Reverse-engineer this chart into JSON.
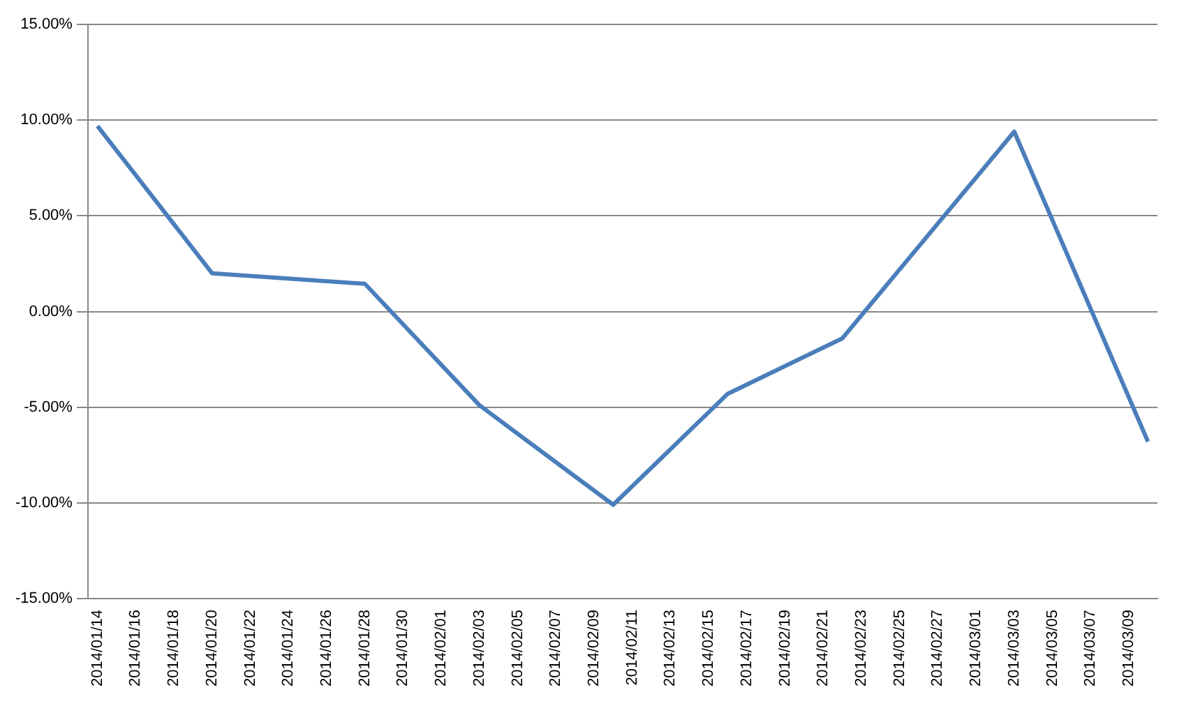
{
  "chart_data": {
    "type": "line",
    "x": [
      "2014-01-14",
      "2014-01-20",
      "2014-01-28",
      "2014-02-03",
      "2014-02-10",
      "2014-02-16",
      "2014-02-22",
      "2014-03-03",
      "2014-03-10"
    ],
    "series": [
      {
        "color": "#4a7ebb",
        "values": [
          9.7,
          2.0,
          1.45,
          -4.9,
          -10.1,
          -4.3,
          -1.4,
          9.4,
          -6.8
        ]
      }
    ],
    "xlim": [
      "2014-01-13T12:00",
      "2014-03-10T12:00"
    ],
    "xticks": [
      {
        "value": "2014-01-14",
        "label": "2014/01/14"
      },
      {
        "value": "2014-01-16",
        "label": "2014/01/16"
      },
      {
        "value": "2014-01-18",
        "label": "2014/01/18"
      },
      {
        "value": "2014-01-20",
        "label": "2014/01/20"
      },
      {
        "value": "2014-01-22",
        "label": "2014/01/22"
      },
      {
        "value": "2014-01-24",
        "label": "2014/01/24"
      },
      {
        "value": "2014-01-26",
        "label": "2014/01/26"
      },
      {
        "value": "2014-01-28",
        "label": "2014/01/28"
      },
      {
        "value": "2014-01-30",
        "label": "2014/01/30"
      },
      {
        "value": "2014-02-01",
        "label": "2014/02/01"
      },
      {
        "value": "2014-02-03",
        "label": "2014/02/03"
      },
      {
        "value": "2014-02-05",
        "label": "2014/02/05"
      },
      {
        "value": "2014-02-07",
        "label": "2014/02/07"
      },
      {
        "value": "2014-02-09",
        "label": "2014/02/09"
      },
      {
        "value": "2014-02-11",
        "label": "2014/02/11"
      },
      {
        "value": "2014-02-13",
        "label": "2014/02/13"
      },
      {
        "value": "2014-02-15",
        "label": "2014/02/15"
      },
      {
        "value": "2014-02-17",
        "label": "2014/02/17"
      },
      {
        "value": "2014-02-19",
        "label": "2014/02/19"
      },
      {
        "value": "2014-02-21",
        "label": "2014/02/21"
      },
      {
        "value": "2014-02-23",
        "label": "2014/02/23"
      },
      {
        "value": "2014-02-25",
        "label": "2014/02/25"
      },
      {
        "value": "2014-02-27",
        "label": "2014/02/27"
      },
      {
        "value": "2014-03-01",
        "label": "2014/03/01"
      },
      {
        "value": "2014-03-03",
        "label": "2014/03/03"
      },
      {
        "value": "2014-03-05",
        "label": "2014/03/05"
      },
      {
        "value": "2014-03-07",
        "label": "2014/03/07"
      },
      {
        "value": "2014-03-09",
        "label": "2014/03/09"
      }
    ],
    "ylim": [
      -15,
      15
    ],
    "yticks": [
      {
        "value": -15,
        "label": "-15.00%"
      },
      {
        "value": -10,
        "label": "-10.00%"
      },
      {
        "value": -5,
        "label": "-5.00%"
      },
      {
        "value": 0,
        "label": "0.00%"
      },
      {
        "value": 5,
        "label": "5.00%"
      },
      {
        "value": 10,
        "label": "10.00%"
      },
      {
        "value": 15,
        "label": "15.00%"
      }
    ],
    "grid": "y",
    "marker": "none",
    "line_style": "solid",
    "legend": false
  }
}
